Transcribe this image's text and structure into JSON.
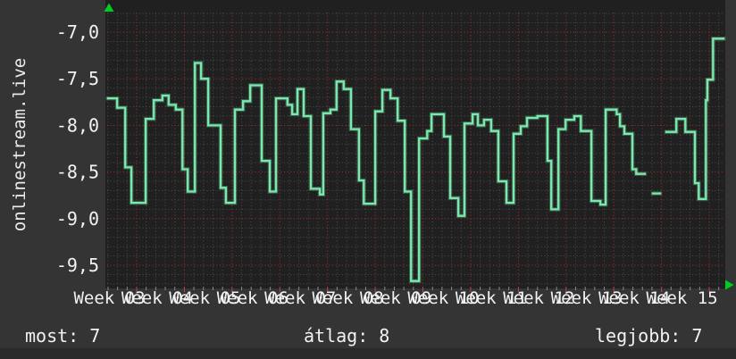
{
  "graph": {
    "vertical_label": "onlinestream.live"
  },
  "footer": {
    "stats": [
      {
        "label": "most:",
        "value": "7"
      },
      {
        "label": "átlag:",
        "value": "8"
      },
      {
        "label": "legjobb:",
        "value": "7"
      }
    ]
  },
  "colors": {
    "page_bg": "#343434",
    "plot_bg": "#202020",
    "bottom_strip": "#2a2a2a",
    "grid_minor": "#4d4d4d",
    "grid_major": "#a83232",
    "tick_minor": "#8a8a8a",
    "tick_major": "#cc4040",
    "line": "#79e9ad",
    "arrow": "#00cc22",
    "text": "#f2f2f2"
  },
  "chart_data": {
    "type": "line",
    "step": true,
    "title": "onlinestream.live",
    "legend_position": "none",
    "grid": true,
    "x_axis": {
      "unit": "week",
      "range": [
        2.4,
        15.3
      ],
      "tick_values": [
        3,
        4,
        5,
        6,
        7,
        8,
        9,
        10,
        11,
        12,
        13,
        14,
        15
      ],
      "tick_labels": [
        "Week 03",
        "Week 04",
        "Week 05",
        "Week 06",
        "Week 07",
        "Week 08",
        "Week 09",
        "Week 10",
        "Week 11",
        "Week 12",
        "Week 13",
        "Week 14",
        "Week 15"
      ],
      "minor_per_major": 5
    },
    "y_axis": {
      "range": [
        -9.75,
        -6.79
      ],
      "tick_values": [
        -7.0,
        -7.5,
        -8.0,
        -8.5,
        -9.0,
        -9.5
      ],
      "tick_labels": [
        "-7,0",
        "-7,5",
        "-8,0",
        "-8,5",
        "-9,0",
        "-9,5"
      ],
      "minor_step": 0.1
    },
    "series": [
      {
        "name": "onlinestream.live",
        "color": "#79e9ad",
        "points": [
          [
            2.4,
            -7.71
          ],
          [
            2.59,
            -7.81
          ],
          [
            2.76,
            -8.45
          ],
          [
            2.89,
            -8.83
          ],
          [
            3.19,
            -7.93
          ],
          [
            3.36,
            -7.73
          ],
          [
            3.54,
            -7.68
          ],
          [
            3.67,
            -7.78
          ],
          [
            3.82,
            -7.83
          ],
          [
            3.96,
            -8.47
          ],
          [
            4.07,
            -8.71
          ],
          [
            4.22,
            -7.33
          ],
          [
            4.35,
            -7.5
          ],
          [
            4.5,
            -8.0
          ],
          [
            4.76,
            -8.67
          ],
          [
            4.87,
            -8.83
          ],
          [
            5.06,
            -7.83
          ],
          [
            5.23,
            -7.74
          ],
          [
            5.38,
            -7.57
          ],
          [
            5.62,
            -8.38
          ],
          [
            5.79,
            -8.71
          ],
          [
            5.92,
            -7.71
          ],
          [
            6.16,
            -7.78
          ],
          [
            6.26,
            -7.88
          ],
          [
            6.37,
            -7.61
          ],
          [
            6.5,
            -7.9
          ],
          [
            6.65,
            -8.68
          ],
          [
            6.84,
            -8.74
          ],
          [
            6.91,
            -7.87
          ],
          [
            7.06,
            -7.83
          ],
          [
            7.19,
            -7.53
          ],
          [
            7.34,
            -7.61
          ],
          [
            7.49,
            -8.04
          ],
          [
            7.66,
            -8.59
          ],
          [
            7.76,
            -8.84
          ],
          [
            8.0,
            -7.85
          ],
          [
            8.15,
            -7.62
          ],
          [
            8.32,
            -7.71
          ],
          [
            8.47,
            -7.95
          ],
          [
            8.62,
            -8.71
          ],
          [
            8.75,
            -9.67
          ],
          [
            8.92,
            -8.14
          ],
          [
            9.09,
            -8.06
          ],
          [
            9.18,
            -7.88
          ],
          [
            9.44,
            -8.12
          ],
          [
            9.57,
            -8.78
          ],
          [
            9.74,
            -8.97
          ],
          [
            9.87,
            -7.98
          ],
          [
            10.04,
            -7.88
          ],
          [
            10.15,
            -8.0
          ],
          [
            10.28,
            -7.94
          ],
          [
            10.43,
            -8.06
          ],
          [
            10.58,
            -8.6
          ],
          [
            10.75,
            -8.83
          ],
          [
            10.9,
            -8.09
          ],
          [
            11.05,
            -8.01
          ],
          [
            11.18,
            -7.92
          ],
          [
            11.4,
            -7.9
          ],
          [
            11.61,
            -8.38
          ],
          [
            11.69,
            -8.9
          ],
          [
            11.84,
            -8.04
          ],
          [
            11.99,
            -7.94
          ],
          [
            12.17,
            -7.9
          ],
          [
            12.31,
            -8.06
          ],
          [
            12.53,
            -8.81
          ],
          [
            12.72,
            -8.85
          ],
          [
            12.83,
            -7.83
          ],
          [
            13.06,
            -7.88
          ],
          [
            13.13,
            -8.01
          ],
          [
            13.22,
            -8.09
          ],
          [
            13.39,
            -8.47
          ],
          [
            13.47,
            -8.52
          ],
          [
            13.65,
            null
          ],
          [
            13.82,
            -8.73
          ],
          [
            13.97,
            null
          ],
          [
            14.1,
            -8.07
          ],
          [
            14.31,
            -7.93
          ],
          [
            14.5,
            -8.07
          ],
          [
            14.7,
            -8.62
          ],
          [
            14.78,
            -8.79
          ],
          [
            14.93,
            -7.73
          ],
          [
            14.96,
            -7.51
          ],
          [
            15.08,
            -7.07
          ],
          [
            15.3,
            -7.07
          ]
        ]
      }
    ]
  }
}
